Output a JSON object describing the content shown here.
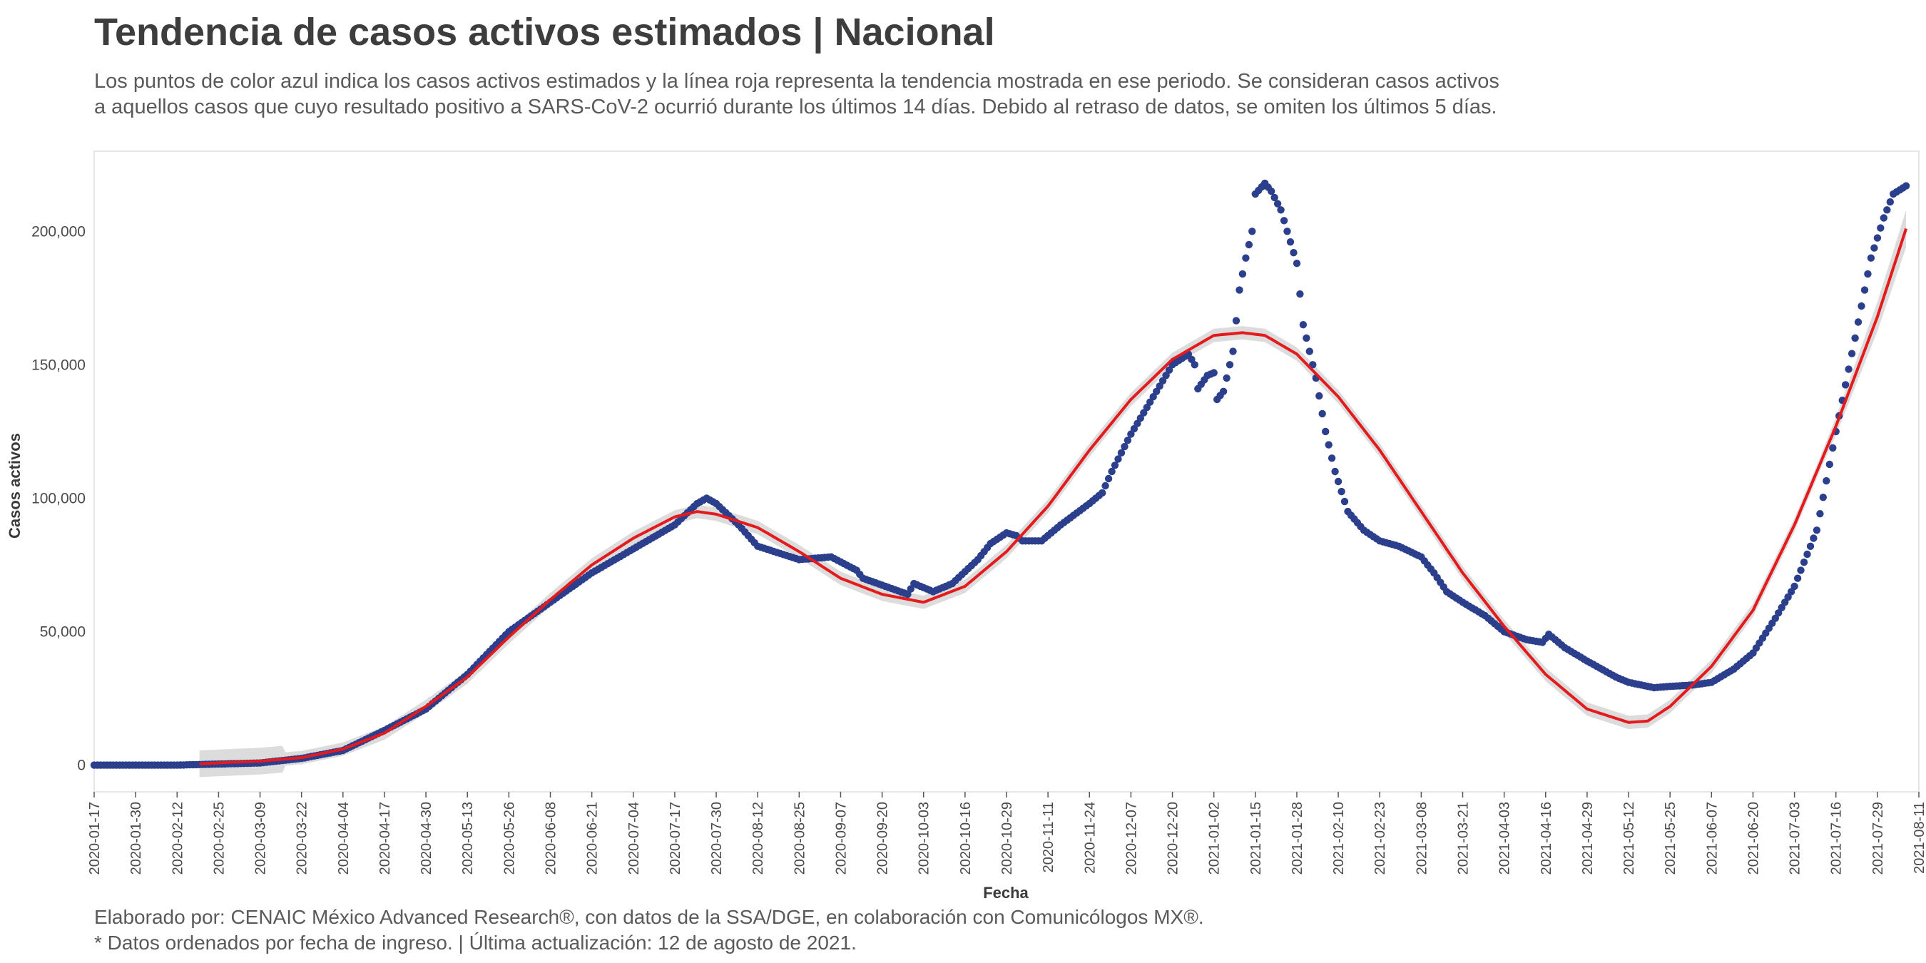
{
  "header": {
    "title": "Tendencia de casos activos estimados | Nacional",
    "subtitle_line1": "Los puntos de color azul indica los casos activos estimados y la línea roja representa la tendencia mostrada en ese periodo. Se consideran casos activos",
    "subtitle_line2": "a aquellos casos que cuyo resultado positivo a SARS-CoV-2 ocurrió durante los últimos 14 días. Debido al retraso de datos, se omiten los últimos 5 días."
  },
  "footer": {
    "line1": "Elaborado por: CENAIC México Advanced Research®, con datos de la SSA/DGE, en colaboración con Comunicólogos MX®.",
    "line2": "* Datos ordenados por fecha de ingreso. | Última actualización: 12 de agosto de 2021."
  },
  "colors": {
    "points": "#2b3f8c",
    "trend": "#e41a1c",
    "ribbon": "#d6d6d6",
    "plot_border": "#e6e6e6"
  },
  "chart_data": {
    "type": "scatter",
    "title": "Tendencia de casos activos estimados | Nacional",
    "xlabel": "Fecha",
    "ylabel": "Casos activos",
    "xlim": [
      "2020-01-17",
      "2021-08-11"
    ],
    "ylim": [
      -10000,
      230000
    ],
    "x_ticks": [
      "2020-01-17",
      "2020-01-30",
      "2020-02-12",
      "2020-02-25",
      "2020-03-09",
      "2020-03-22",
      "2020-04-04",
      "2020-04-17",
      "2020-04-30",
      "2020-05-13",
      "2020-05-26",
      "2020-06-08",
      "2020-06-21",
      "2020-07-04",
      "2020-07-17",
      "2020-07-30",
      "2020-08-12",
      "2020-08-25",
      "2020-09-07",
      "2020-09-20",
      "2020-10-03",
      "2020-10-16",
      "2020-10-29",
      "2020-11-11",
      "2020-11-24",
      "2020-12-07",
      "2020-12-20",
      "2021-01-02",
      "2021-01-15",
      "2021-01-28",
      "2021-02-10",
      "2021-02-23",
      "2021-03-08",
      "2021-03-21",
      "2021-04-03",
      "2021-04-16",
      "2021-04-29",
      "2021-05-12",
      "2021-05-25",
      "2021-06-07",
      "2021-06-20",
      "2021-07-03",
      "2021-07-16",
      "2021-07-29",
      "2021-08-11"
    ],
    "y_ticks": [
      0,
      50000,
      100000,
      150000,
      200000
    ],
    "y_tick_labels": [
      "0",
      "50,000",
      "100,000",
      "150,000",
      "200,000"
    ],
    "series": [
      {
        "name": "Casos activos estimados",
        "style": "points",
        "anchors": [
          [
            "2020-01-17",
            0
          ],
          [
            "2020-02-12",
            0
          ],
          [
            "2020-03-09",
            800
          ],
          [
            "2020-03-22",
            2500
          ],
          [
            "2020-04-04",
            5500
          ],
          [
            "2020-04-17",
            13000
          ],
          [
            "2020-04-30",
            21000
          ],
          [
            "2020-05-13",
            34000
          ],
          [
            "2020-05-26",
            50000
          ],
          [
            "2020-06-08",
            61000
          ],
          [
            "2020-06-21",
            72000
          ],
          [
            "2020-07-04",
            81000
          ],
          [
            "2020-07-17",
            90000
          ],
          [
            "2020-07-24",
            98000
          ],
          [
            "2020-07-27",
            100000
          ],
          [
            "2020-07-30",
            98000
          ],
          [
            "2020-08-06",
            90000
          ],
          [
            "2020-08-12",
            82000
          ],
          [
            "2020-08-25",
            77000
          ],
          [
            "2020-09-04",
            78000
          ],
          [
            "2020-09-12",
            73000
          ],
          [
            "2020-09-14",
            70000
          ],
          [
            "2020-09-28",
            64000
          ],
          [
            "2020-09-30",
            68000
          ],
          [
            "2020-10-06",
            65000
          ],
          [
            "2020-10-12",
            68000
          ],
          [
            "2020-10-20",
            77000
          ],
          [
            "2020-10-24",
            83000
          ],
          [
            "2020-10-29",
            87000
          ],
          [
            "2020-11-01",
            86000
          ],
          [
            "2020-11-03",
            84000
          ],
          [
            "2020-11-09",
            84000
          ],
          [
            "2020-11-15",
            90000
          ],
          [
            "2020-11-24",
            98000
          ],
          [
            "2020-11-28",
            102000
          ],
          [
            "2020-12-01",
            110000
          ],
          [
            "2020-12-07",
            124000
          ],
          [
            "2020-12-14",
            138000
          ],
          [
            "2020-12-20",
            150000
          ],
          [
            "2020-12-25",
            154000
          ],
          [
            "2020-12-27",
            150000
          ],
          [
            "2020-12-28",
            141000
          ],
          [
            "2020-12-31",
            146000
          ],
          [
            "2021-01-02",
            147000
          ],
          [
            "2021-01-03",
            137000
          ],
          [
            "2021-01-05",
            140000
          ],
          [
            "2021-01-08",
            155000
          ],
          [
            "2021-01-10",
            178000
          ],
          [
            "2021-01-12",
            190000
          ],
          [
            "2021-01-14",
            200000
          ],
          [
            "2021-01-15",
            214000
          ],
          [
            "2021-01-18",
            218000
          ],
          [
            "2021-01-20",
            215000
          ],
          [
            "2021-01-23",
            208000
          ],
          [
            "2021-01-26",
            196000
          ],
          [
            "2021-01-28",
            188000
          ],
          [
            "2021-01-30",
            165000
          ],
          [
            "2021-02-03",
            145000
          ],
          [
            "2021-02-06",
            125000
          ],
          [
            "2021-02-09",
            110000
          ],
          [
            "2021-02-13",
            95000
          ],
          [
            "2021-02-18",
            88000
          ],
          [
            "2021-02-23",
            84000
          ],
          [
            "2021-03-01",
            82000
          ],
          [
            "2021-03-08",
            78000
          ],
          [
            "2021-03-12",
            72000
          ],
          [
            "2021-03-16",
            65000
          ],
          [
            "2021-03-21",
            61000
          ],
          [
            "2021-03-28",
            56000
          ],
          [
            "2021-04-03",
            50000
          ],
          [
            "2021-04-10",
            47000
          ],
          [
            "2021-04-15",
            46000
          ],
          [
            "2021-04-17",
            49000
          ],
          [
            "2021-04-22",
            44000
          ],
          [
            "2021-04-29",
            39000
          ],
          [
            "2021-05-08",
            33000
          ],
          [
            "2021-05-12",
            31000
          ],
          [
            "2021-05-20",
            29000
          ],
          [
            "2021-05-25",
            29500
          ],
          [
            "2021-06-01",
            30000
          ],
          [
            "2021-06-07",
            31000
          ],
          [
            "2021-06-14",
            36000
          ],
          [
            "2021-06-20",
            42000
          ],
          [
            "2021-06-27",
            55000
          ],
          [
            "2021-07-03",
            67000
          ],
          [
            "2021-07-10",
            88000
          ],
          [
            "2021-07-16",
            125000
          ],
          [
            "2021-07-22",
            160000
          ],
          [
            "2021-07-27",
            190000
          ],
          [
            "2021-07-31",
            205000
          ],
          [
            "2021-08-03",
            214000
          ],
          [
            "2021-08-07",
            217000
          ]
        ]
      },
      {
        "name": "Tendencia",
        "style": "line",
        "anchors": [
          [
            "2020-02-19",
            500
          ],
          [
            "2020-03-09",
            1500
          ],
          [
            "2020-03-22",
            2800
          ],
          [
            "2020-04-04",
            6000
          ],
          [
            "2020-04-17",
            12000
          ],
          [
            "2020-04-30",
            22000
          ],
          [
            "2020-05-13",
            33000
          ],
          [
            "2020-05-26",
            48000
          ],
          [
            "2020-06-08",
            62000
          ],
          [
            "2020-06-21",
            75000
          ],
          [
            "2020-07-04",
            85000
          ],
          [
            "2020-07-17",
            93000
          ],
          [
            "2020-07-24",
            95000
          ],
          [
            "2020-07-30",
            94000
          ],
          [
            "2020-08-12",
            89000
          ],
          [
            "2020-08-25",
            80000
          ],
          [
            "2020-09-07",
            70000
          ],
          [
            "2020-09-20",
            64000
          ],
          [
            "2020-10-03",
            61000
          ],
          [
            "2020-10-16",
            67000
          ],
          [
            "2020-10-29",
            80000
          ],
          [
            "2020-11-11",
            97000
          ],
          [
            "2020-11-24",
            118000
          ],
          [
            "2020-12-07",
            137000
          ],
          [
            "2020-12-20",
            152000
          ],
          [
            "2021-01-02",
            161000
          ],
          [
            "2021-01-11",
            162000
          ],
          [
            "2021-01-18",
            161000
          ],
          [
            "2021-01-28",
            154000
          ],
          [
            "2021-02-10",
            138000
          ],
          [
            "2021-02-23",
            118000
          ],
          [
            "2021-03-08",
            95000
          ],
          [
            "2021-03-21",
            72000
          ],
          [
            "2021-04-03",
            52000
          ],
          [
            "2021-04-16",
            34000
          ],
          [
            "2021-04-29",
            21000
          ],
          [
            "2021-05-12",
            16000
          ],
          [
            "2021-05-18",
            16500
          ],
          [
            "2021-05-25",
            22000
          ],
          [
            "2021-06-07",
            37000
          ],
          [
            "2021-06-20",
            58000
          ],
          [
            "2021-07-03",
            90000
          ],
          [
            "2021-07-16",
            127000
          ],
          [
            "2021-07-29",
            168000
          ],
          [
            "2021-08-07",
            201000
          ]
        ]
      }
    ]
  }
}
